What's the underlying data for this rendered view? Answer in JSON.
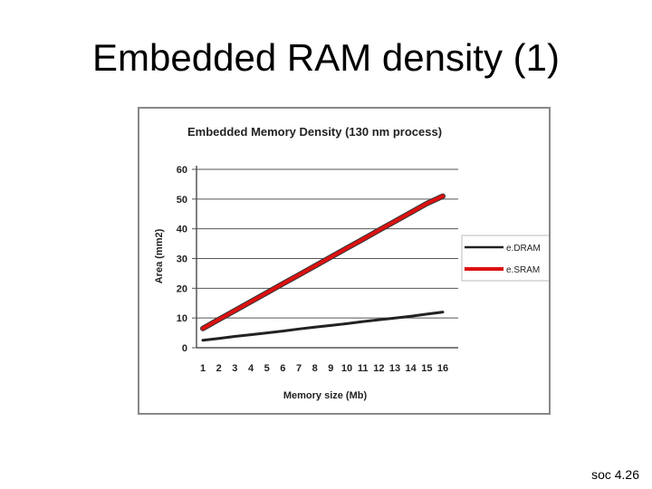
{
  "slide": {
    "title": "Embedded RAM density (1)",
    "footer": "soc 4.26"
  },
  "chart_data": {
    "type": "line",
    "title": "Embedded Memory Density (130 nm process)",
    "xlabel": "Memory size (Mb)",
    "ylabel": "Area (mm2)",
    "x": [
      1,
      2,
      3,
      4,
      5,
      6,
      7,
      8,
      9,
      10,
      11,
      12,
      13,
      14,
      15,
      16
    ],
    "ylim": [
      0,
      60
    ],
    "yticks": [
      0,
      10,
      20,
      30,
      40,
      50,
      60
    ],
    "grid": "horizontal",
    "legend_position": "right",
    "series": [
      {
        "name": "e.DRAM",
        "color": "#222222",
        "values": [
          2.5,
          3.1,
          3.8,
          4.4,
          5.0,
          5.6,
          6.3,
          6.9,
          7.5,
          8.1,
          8.8,
          9.4,
          10.0,
          10.6,
          11.3,
          12.0
        ]
      },
      {
        "name": "e.SRAM",
        "color": "#dd1111",
        "values": [
          6.5,
          9.5,
          12.5,
          15.5,
          18.5,
          21.5,
          24.5,
          27.5,
          30.5,
          33.5,
          36.5,
          39.5,
          42.5,
          45.5,
          48.5,
          51.0
        ]
      }
    ]
  }
}
